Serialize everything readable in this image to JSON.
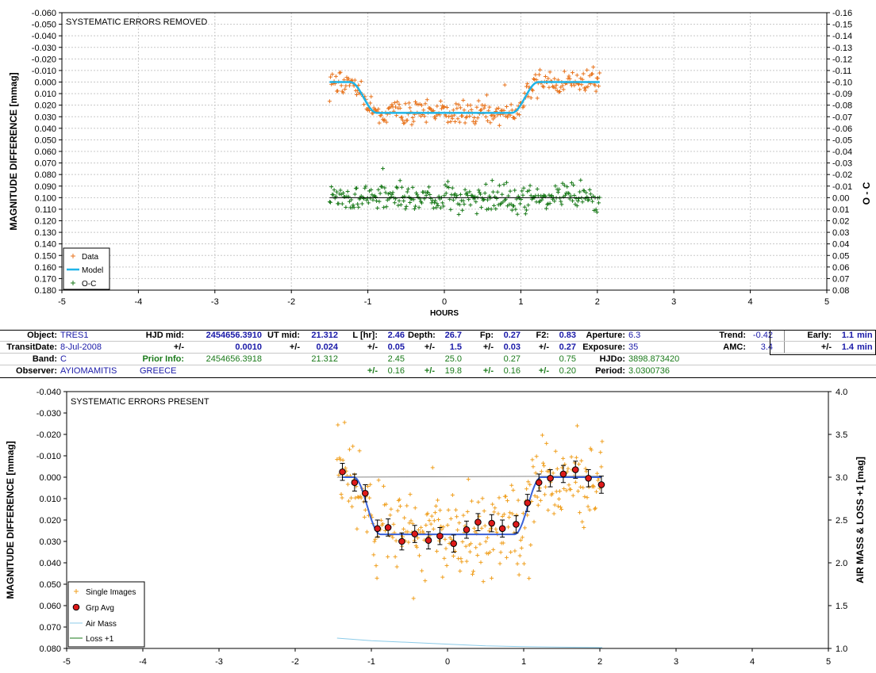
{
  "chart_data": [
    {
      "type": "scatter",
      "title": "SYSTEMATIC ERRORS REMOVED",
      "xlabel": "HOURS",
      "ylabel": "MAGNITUDE DIFFERENCE [mmag]",
      "y2label": "O - C",
      "xlim": [
        -5,
        5
      ],
      "ylim": [
        -0.06,
        0.18
      ],
      "y_inverted": true,
      "y2lim": [
        -0.16,
        0.08
      ],
      "y2_inverted": true,
      "x_ticks": [
        "-5",
        "-4",
        "-3",
        "-2",
        "-1",
        "0",
        "1",
        "2",
        "3",
        "4",
        "5"
      ],
      "y_ticks": [
        "-0.060",
        "-0.050",
        "-0.040",
        "-0.030",
        "-0.020",
        "-0.010",
        "0.000",
        "0.010",
        "0.020",
        "0.030",
        "0.040",
        "0.050",
        "0.060",
        "0.070",
        "0.080",
        "0.090",
        "0.100",
        "0.110",
        "0.120",
        "0.130",
        "0.140",
        "0.150",
        "0.160",
        "0.170",
        "0.180"
      ],
      "y2_ticks": [
        "-0.16",
        "-0.15",
        "-0.14",
        "-0.13",
        "-0.12",
        "-0.11",
        "-0.10",
        "-0.09",
        "-0.08",
        "-0.07",
        "-0.06",
        "-0.05",
        "-0.04",
        "-0.03",
        "-0.02",
        "-0.01",
        "0.00",
        "0.01",
        "0.02",
        "0.03",
        "0.04",
        "0.05",
        "0.06",
        "0.07",
        "0.08"
      ],
      "grid": true,
      "legend_position": "bottom-left",
      "legend": [
        "Data",
        "Model",
        "O-C"
      ],
      "colors": {
        "data": "#e8731c",
        "model": "#1fb4e8",
        "oc": "#1a7a1a",
        "oc_line": "#000000"
      },
      "transit_model": {
        "x_start": -1.5,
        "ingress_start": -1.23,
        "ingress_end": -0.88,
        "egress_start": 0.88,
        "egress_end": 1.23,
        "x_end": 2.03,
        "depth": 0.0267,
        "out_of_transit": 0.0
      },
      "data_points": {
        "x_range": [
          -1.5,
          2.03
        ],
        "count": 300,
        "scatter_mmag": 0.006
      },
      "oc_points": {
        "x_range": [
          -1.5,
          2.03
        ],
        "count": 300,
        "offset": 0.1,
        "scatter_mmag": 0.006
      }
    },
    {
      "type": "scatter",
      "title": "SYSTEMATIC ERRORS PRESENT",
      "xlabel": "",
      "ylabel": "MAGNITUDE DIFFERENCE [mmag]",
      "y2label": "AIR MASS & LOSS +1 [mag]",
      "xlim": [
        -5,
        5
      ],
      "ylim": [
        -0.04,
        0.08
      ],
      "y_inverted": true,
      "y2lim": [
        1.0,
        4.0
      ],
      "x_ticks": [
        "-5",
        "-4",
        "-3",
        "-2",
        "-1",
        "0",
        "1",
        "2",
        "3",
        "4",
        "5"
      ],
      "y_ticks": [
        "-0.040",
        "-0.030",
        "-0.020",
        "-0.010",
        "0.000",
        "0.010",
        "0.020",
        "0.030",
        "0.040",
        "0.050",
        "0.060",
        "0.070",
        "0.080"
      ],
      "y2_ticks": [
        "4.0",
        "3.5",
        "3.0",
        "2.5",
        "2.0",
        "1.5",
        "1.0"
      ],
      "grid": false,
      "legend_position": "bottom-left",
      "legend": [
        "Single Images",
        "Grp Avg",
        "Air Mass",
        "Loss +1"
      ],
      "colors": {
        "single": "#f0a020",
        "grp": "#dd1a1a",
        "model": "#3a62d8",
        "air": "#8ccbe8",
        "loss": "#1a7a1a",
        "ref": "#888888"
      },
      "group_avg": {
        "x": [
          -1.38,
          -1.22,
          -1.08,
          -0.92,
          -0.78,
          -0.6,
          -0.43,
          -0.25,
          -0.1,
          0.08,
          0.25,
          0.4,
          0.58,
          0.72,
          0.9,
          1.05,
          1.2,
          1.35,
          1.52,
          1.68,
          1.85,
          2.02
        ],
        "y": [
          -0.0025,
          0.0025,
          0.0075,
          0.024,
          0.0235,
          0.03,
          0.0265,
          0.0295,
          0.0275,
          0.031,
          0.0245,
          0.021,
          0.0215,
          0.024,
          0.022,
          0.012,
          0.0025,
          0.0005,
          -0.0015,
          -0.0035,
          0.0005,
          0.0035
        ],
        "err": 0.004
      },
      "air_mass": {
        "x": [
          -1.45,
          -1.0,
          -0.5,
          0.0,
          0.5,
          1.0,
          1.5,
          2.03
        ],
        "y": [
          1.12,
          1.09,
          1.07,
          1.05,
          1.03,
          1.02,
          1.015,
          1.01
        ]
      },
      "reference_line": {
        "x": [
          -1.45,
          2.03
        ],
        "y": [
          0.0,
          -0.0005
        ]
      },
      "single_images": {
        "x_range": [
          -1.45,
          2.03
        ],
        "count": 320,
        "scatter_mmag": 0.011
      }
    }
  ],
  "info": {
    "r1": {
      "object_label": "Object:",
      "object": "TRES1",
      "hjd_label": "HJD mid:",
      "hjd": "2454656.3910",
      "ut_label": "UT mid:",
      "ut": "21.312",
      "l_label": "L [hr]:",
      "l": "2.46",
      "depth_label": "Depth:",
      "depth": "26.7",
      "fp_label": "Fp:",
      "fp": "0.27",
      "f2_label": "F2:",
      "f2": "0.83",
      "ap_label": "Aperture:",
      "ap": "6.3",
      "trend_label": "Trend:",
      "trend": "-0.42",
      "early_label": "Early:",
      "early": "1.1",
      "early_unit": "min"
    },
    "r2": {
      "date_label": "TransitDate:",
      "date": "8-Jul-2008",
      "pm": "+/-",
      "hjd_err": "0.0010",
      "ut_pm": "+/-",
      "ut_err": "0.024",
      "l_pm": "+/-",
      "l_err": "0.05",
      "depth_pm": "+/-",
      "depth_err": "1.5",
      "fp_pm": "+/-",
      "fp_err": "0.03",
      "f2_pm": "+/-",
      "f2_err": "0.27",
      "exp_label": "Exposure:",
      "exp": "35",
      "amc_label": "AMC:",
      "amc": "3.4",
      "early_pm": "+/-",
      "early_err": "1.4",
      "early_unit": "min"
    },
    "r3": {
      "band_label": "Band:",
      "band": "C",
      "prior_label": "Prior Info:",
      "prior_hjd": "2454656.3918",
      "prior_ut": "21.312",
      "prior_l": "2.45",
      "prior_depth": "25.0",
      "prior_fp": "0.27",
      "prior_f2": "0.75",
      "hjdo_label": "HJDo:",
      "hjdo": "3898.873420"
    },
    "r4": {
      "obs_label": "Observer:",
      "obs": "AYIOMAMITIS",
      "country": "GREECE",
      "l_pm": "+/-",
      "l_err": "0.16",
      "depth_pm": "+/-",
      "depth_err": "19.8",
      "fp_pm": "+/-",
      "fp_err": "0.16",
      "f2_pm": "+/-",
      "f2_err": "0.20",
      "period_label": "Period:",
      "period": "3.0300736"
    }
  }
}
